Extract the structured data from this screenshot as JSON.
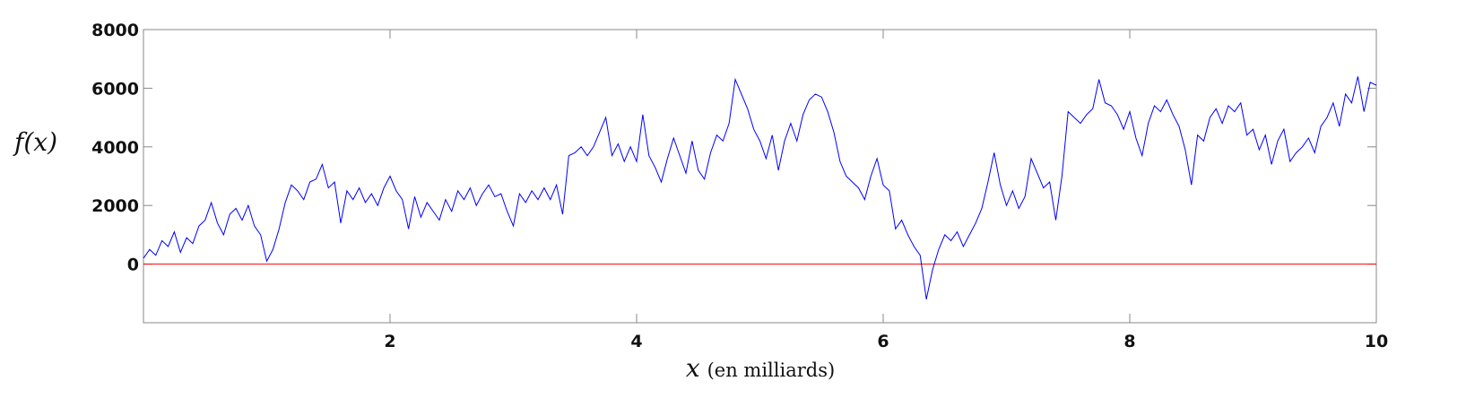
{
  "chart_data": {
    "type": "line",
    "ylabel": "f(x)",
    "xlabel": "x",
    "xlabel_note": "(en milliards)",
    "xlim": [
      0,
      10
    ],
    "xticks": [
      2,
      4,
      6,
      8,
      10
    ],
    "ylim": [
      -2000,
      8000
    ],
    "yticks": [
      0,
      2000,
      4000,
      6000,
      8000
    ],
    "color": "#0000ff",
    "hline": {
      "value": 0,
      "color": "#ff0000"
    },
    "x": [
      0,
      0.05,
      0.1,
      0.15,
      0.2,
      0.25,
      0.3,
      0.35,
      0.4,
      0.45,
      0.5,
      0.55,
      0.6,
      0.65,
      0.7,
      0.75,
      0.8,
      0.85,
      0.9,
      0.95,
      1,
      1.05,
      1.1,
      1.15,
      1.2,
      1.25,
      1.3,
      1.35,
      1.4,
      1.45,
      1.5,
      1.55,
      1.6,
      1.65,
      1.7,
      1.75,
      1.8,
      1.85,
      1.9,
      1.95,
      2,
      2.05,
      2.1,
      2.15,
      2.2,
      2.25,
      2.3,
      2.35,
      2.4,
      2.45,
      2.5,
      2.55,
      2.6,
      2.65,
      2.7,
      2.75,
      2.8,
      2.85,
      2.9,
      2.95,
      3,
      3.05,
      3.1,
      3.15,
      3.2,
      3.25,
      3.3,
      3.35,
      3.4,
      3.45,
      3.5,
      3.55,
      3.6,
      3.65,
      3.7,
      3.75,
      3.8,
      3.85,
      3.9,
      3.95,
      4,
      4.05,
      4.1,
      4.15,
      4.2,
      4.25,
      4.3,
      4.35,
      4.4,
      4.45,
      4.5,
      4.55,
      4.6,
      4.65,
      4.7,
      4.75,
      4.8,
      4.85,
      4.9,
      4.95,
      5,
      5.05,
      5.1,
      5.15,
      5.2,
      5.25,
      5.3,
      5.35,
      5.4,
      5.45,
      5.5,
      5.55,
      5.6,
      5.65,
      5.7,
      5.75,
      5.8,
      5.85,
      5.9,
      5.95,
      6,
      6.05,
      6.1,
      6.15,
      6.2,
      6.25,
      6.3,
      6.35,
      6.4,
      6.45,
      6.5,
      6.55,
      6.6,
      6.65,
      6.7,
      6.75,
      6.8,
      6.85,
      6.9,
      6.95,
      7,
      7.05,
      7.1,
      7.15,
      7.2,
      7.25,
      7.3,
      7.35,
      7.4,
      7.45,
      7.5,
      7.55,
      7.6,
      7.65,
      7.7,
      7.75,
      7.8,
      7.85,
      7.9,
      7.95,
      8,
      8.05,
      8.1,
      8.15,
      8.2,
      8.25,
      8.3,
      8.35,
      8.4,
      8.45,
      8.5,
      8.55,
      8.6,
      8.65,
      8.7,
      8.75,
      8.8,
      8.85,
      8.9,
      8.95,
      9,
      9.05,
      9.1,
      9.15,
      9.2,
      9.25,
      9.3,
      9.35,
      9.4,
      9.45,
      9.5,
      9.55,
      9.6,
      9.65,
      9.7,
      9.75,
      9.8,
      9.85,
      9.9,
      9.95,
      10
    ],
    "values": [
      200,
      500,
      300,
      800,
      600,
      1100,
      400,
      900,
      700,
      1300,
      1500,
      2100,
      1400,
      1000,
      1700,
      1900,
      1500,
      2000,
      1300,
      1000,
      100,
      500,
      1200,
      2100,
      2700,
      2500,
      2200,
      2800,
      2900,
      3400,
      2600,
      2800,
      1400,
      2500,
      2200,
      2600,
      2100,
      2400,
      2000,
      2600,
      3000,
      2500,
      2200,
      1200,
      2300,
      1600,
      2100,
      1800,
      1500,
      2200,
      1800,
      2500,
      2200,
      2600,
      2000,
      2400,
      2700,
      2300,
      2400,
      1800,
      1300,
      2400,
      2100,
      2500,
      2200,
      2600,
      2200,
      2700,
      1700,
      3700,
      3800,
      4000,
      3700,
      4000,
      4500,
      5000,
      3700,
      4100,
      3500,
      4000,
      3500,
      5100,
      3700,
      3300,
      2800,
      3600,
      4300,
      3700,
      3100,
      4200,
      3200,
      2900,
      3800,
      4400,
      4200,
      4800,
      6300,
      5800,
      5300,
      4600,
      4200,
      3600,
      4400,
      3200,
      4200,
      4800,
      4200,
      5100,
      5600,
      5800,
      5700,
      5200,
      4500,
      3500,
      3000,
      2800,
      2600,
      2200,
      3000,
      3600,
      2700,
      2500,
      1200,
      1500,
      1000,
      600,
      300,
      -1200,
      -200,
      500,
      1000,
      800,
      1100,
      600,
      1000,
      1400,
      1900,
      2800,
      3800,
      2700,
      2000,
      2500,
      1900,
      2300,
      3600,
      3100,
      2600,
      2800,
      1500,
      3000,
      5200,
      5000,
      4800,
      5100,
      5300,
      6300,
      5500,
      5400,
      5100,
      4600,
      5200,
      4300,
      3700,
      4800,
      5400,
      5200,
      5600,
      5100,
      4700,
      3900,
      2700,
      4400,
      4200,
      5000,
      5300,
      4800,
      5400,
      5200,
      5500,
      4400,
      4600,
      3900,
      4400,
      3400,
      4200,
      4600,
      3500,
      3800,
      4000,
      4300,
      3800,
      4700,
      5000,
      5500,
      4700,
      5800,
      5500,
      6400,
      5200,
      6200,
      6100
    ]
  }
}
